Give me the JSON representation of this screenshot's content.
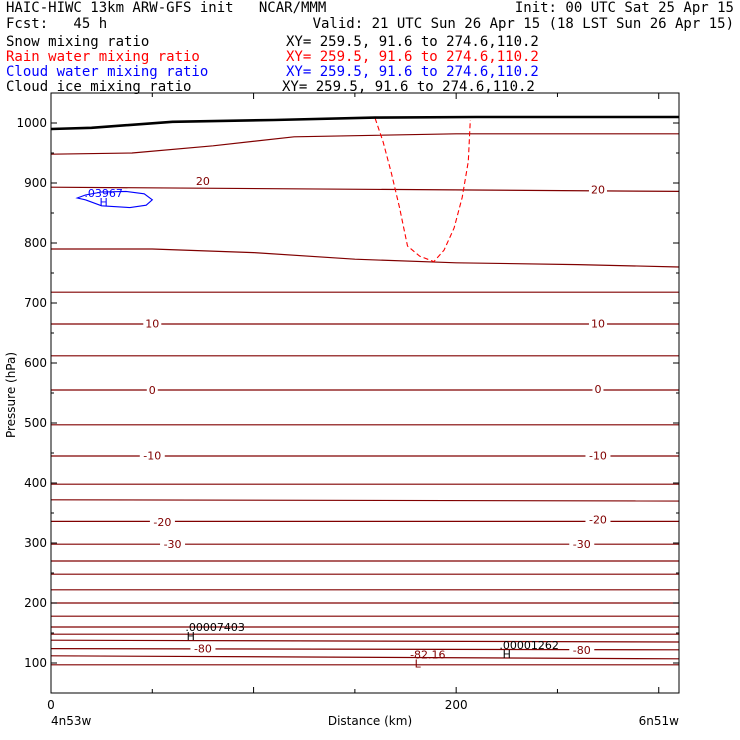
{
  "header": {
    "title": "HAIC-HIWC 13km ARW-GFS init   NCAR/MMM",
    "init": "Init: 00 UTC Sat 25 Apr 15",
    "fcst": "Fcst:   45 h",
    "valid": "Valid: 21 UTC Sun 26 Apr 15 (18 LST Sun 26 Apr 15)"
  },
  "fields": [
    {
      "name": "Snow mixing ratio",
      "xy": "XY= 259.5, 91.6 to 274.6,110.2",
      "color": "#000000"
    },
    {
      "name": "Rain water mixing ratio",
      "xy": "XY= 259.5, 91.6 to 274.6,110.2",
      "color": "#ff0000"
    },
    {
      "name": "Cloud water mixing ratio",
      "xy": "XY= 259.5, 91.6 to 274.6,110.2",
      "color": "#0000ff"
    },
    {
      "name": "Cloud ice mixing ratio",
      "xy": "XY= 259.5, 91.6 to 274.6,110.2",
      "color": "#000000"
    }
  ],
  "chart_data": {
    "type": "cross-section",
    "xlabel": "Distance (km)",
    "ylabel": "Pressure (hPa)",
    "xlim": [
      0,
      310
    ],
    "ylim": [
      1050,
      50
    ],
    "x_ticks": [
      0,
      200
    ],
    "y_ticks": [
      100,
      200,
      300,
      400,
      500,
      600,
      700,
      800,
      900,
      1000
    ],
    "x_end_labels": [
      "4n53w",
      "6n51w"
    ],
    "colors": {
      "temperature": "#800000",
      "terrain": "#000000",
      "rain": "#ff0000",
      "cloud": "#0000ff",
      "ice": "#000000"
    },
    "temperature_contours": [
      {
        "points": [
          [
            0,
            97
          ],
          [
            310,
            97
          ]
        ]
      },
      {
        "points": [
          [
            0,
            112
          ],
          [
            310,
            107
          ]
        ]
      },
      {
        "points": [
          [
            0,
            124
          ],
          [
            310,
            122
          ]
        ],
        "label": "-80",
        "label_positions": [
          [
            75,
            124
          ],
          [
            262,
            122
          ]
        ]
      },
      {
        "points": [
          [
            0,
            138
          ],
          [
            310,
            135
          ]
        ]
      },
      {
        "points": [
          [
            0,
            148
          ],
          [
            310,
            148
          ]
        ]
      },
      {
        "points": [
          [
            0,
            160
          ],
          [
            310,
            160
          ]
        ]
      },
      {
        "points": [
          [
            0,
            178
          ],
          [
            310,
            178
          ]
        ]
      },
      {
        "points": [
          [
            0,
            200
          ],
          [
            310,
            200
          ]
        ]
      },
      {
        "points": [
          [
            0,
            222
          ],
          [
            310,
            222
          ]
        ]
      },
      {
        "points": [
          [
            0,
            248
          ],
          [
            310,
            248
          ]
        ]
      },
      {
        "points": [
          [
            0,
            270
          ],
          [
            310,
            270
          ]
        ]
      },
      {
        "points": [
          [
            0,
            298
          ],
          [
            310,
            298
          ]
        ],
        "label": "-30",
        "label_positions": [
          [
            60,
            298
          ],
          [
            262,
            298
          ]
        ]
      },
      {
        "points": [
          [
            0,
            336
          ],
          [
            310,
            336
          ]
        ],
        "label": "-20",
        "label_positions": [
          [
            55,
            335
          ],
          [
            270,
            339
          ]
        ]
      },
      {
        "points": [
          [
            0,
            372
          ],
          [
            310,
            370
          ]
        ]
      },
      {
        "points": [
          [
            0,
            398
          ],
          [
            310,
            398
          ]
        ]
      },
      {
        "points": [
          [
            0,
            445
          ],
          [
            310,
            445
          ]
        ],
        "label": "-10",
        "label_positions": [
          [
            50,
            446
          ],
          [
            270,
            446
          ]
        ]
      },
      {
        "points": [
          [
            0,
            497
          ],
          [
            310,
            497
          ]
        ]
      },
      {
        "points": [
          [
            0,
            555
          ],
          [
            310,
            555
          ]
        ],
        "label": "0",
        "label_positions": [
          [
            50,
            555
          ],
          [
            270,
            557
          ]
        ]
      },
      {
        "points": [
          [
            0,
            612
          ],
          [
            310,
            612
          ]
        ]
      },
      {
        "points": [
          [
            0,
            665
          ],
          [
            310,
            665
          ]
        ],
        "label": "10",
        "label_positions": [
          [
            50,
            666
          ],
          [
            270,
            666
          ]
        ]
      },
      {
        "points": [
          [
            0,
            718
          ],
          [
            310,
            718
          ]
        ]
      },
      {
        "points": [
          [
            0,
            790
          ],
          [
            50,
            790
          ],
          [
            100,
            784
          ],
          [
            150,
            773
          ],
          [
            200,
            767
          ],
          [
            260,
            764
          ],
          [
            310,
            760
          ]
        ]
      },
      {
        "points": [
          [
            0,
            893
          ],
          [
            310,
            886
          ]
        ],
        "label": "20",
        "label_positions": [
          [
            75,
            903
          ],
          [
            270,
            889
          ]
        ]
      },
      {
        "points": [
          [
            0,
            948
          ],
          [
            40,
            950
          ],
          [
            80,
            962
          ],
          [
            120,
            977
          ],
          [
            200,
            982
          ],
          [
            310,
            982
          ]
        ]
      }
    ],
    "rain_region": {
      "points": [
        [
          160,
          1008
        ],
        [
          164,
          968
        ],
        [
          168,
          917
        ],
        [
          172,
          860
        ],
        [
          176,
          795
        ],
        [
          182,
          778
        ],
        [
          189,
          769
        ],
        [
          194,
          788
        ],
        [
          199,
          825
        ],
        [
          203,
          876
        ],
        [
          206,
          936
        ],
        [
          207,
          1005
        ]
      ]
    },
    "cloud_region": {
      "points": [
        [
          17,
          872
        ],
        [
          25,
          862
        ],
        [
          39,
          859
        ],
        [
          47,
          863
        ],
        [
          50,
          872
        ],
        [
          46,
          882
        ],
        [
          37,
          886
        ],
        [
          25,
          885
        ],
        [
          17,
          880
        ],
        [
          13,
          875
        ],
        [
          17,
          872
        ]
      ],
      "label": "H",
      "value": ".03967",
      "label_at": [
        26,
        868
      ],
      "value_at": [
        26,
        883
      ]
    },
    "terrain": {
      "points": [
        [
          0,
          990
        ],
        [
          20,
          992
        ],
        [
          60,
          1002
        ],
        [
          110,
          1005
        ],
        [
          160,
          1009
        ],
        [
          210,
          1010
        ],
        [
          260,
          1010
        ],
        [
          310,
          1010
        ]
      ]
    },
    "extrema": [
      {
        "type": "L",
        "value": "-82.16",
        "at": [
          181,
          99
        ],
        "value_at": [
          186,
          114
        ],
        "color": "#800000"
      },
      {
        "type": "H",
        "value": ".00007403",
        "at": [
          69,
          145
        ],
        "value_at": [
          81,
          160
        ],
        "color": "#000000"
      },
      {
        "type": "H",
        "value": ".00001262",
        "at": [
          225,
          115
        ],
        "value_at": [
          236,
          130
        ],
        "color": "#000000"
      }
    ]
  }
}
